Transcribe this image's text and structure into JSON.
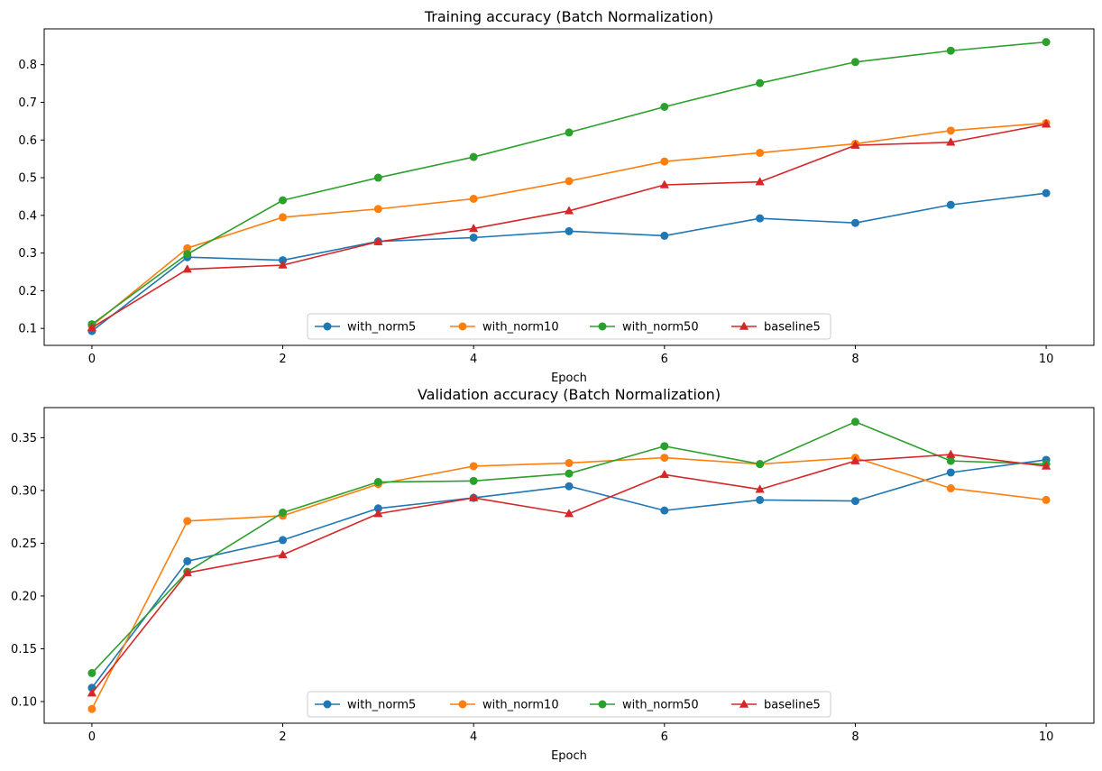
{
  "colors": {
    "with_norm5": "#1f77b4",
    "with_norm10": "#ff7f0e",
    "with_norm50": "#2ca02c",
    "baseline5": "#d62728"
  },
  "chart_data": [
    {
      "type": "line",
      "title": "Training accuracy (Batch Normalization)",
      "xlabel": "Epoch",
      "ylabel": "",
      "xlim": [
        -0.5,
        10.5
      ],
      "ylim": [
        0.055,
        0.895
      ],
      "xticks": [
        0,
        2,
        4,
        6,
        8,
        10
      ],
      "yticks": [
        0.1,
        0.2,
        0.3,
        0.4,
        0.5,
        0.6,
        0.7,
        0.8
      ],
      "ytick_labels": [
        "0.1",
        "0.2",
        "0.3",
        "0.4",
        "0.5",
        "0.6",
        "0.7",
        "0.8"
      ],
      "legend": "lower center, 4 columns",
      "grid": false,
      "x": [
        0,
        1,
        2,
        3,
        4,
        5,
        6,
        7,
        8,
        9,
        10
      ],
      "series": [
        {
          "name": "with_norm5",
          "marker": "circle",
          "values": [
            0.093,
            0.289,
            0.281,
            0.331,
            0.341,
            0.358,
            0.346,
            0.392,
            0.38,
            0.428,
            0.459
          ]
        },
        {
          "name": "with_norm10",
          "marker": "circle",
          "values": [
            0.107,
            0.313,
            0.395,
            0.417,
            0.444,
            0.491,
            0.543,
            0.566,
            0.59,
            0.625,
            0.645
          ]
        },
        {
          "name": "with_norm50",
          "marker": "circle",
          "values": [
            0.111,
            0.297,
            0.44,
            0.5,
            0.555,
            0.62,
            0.688,
            0.751,
            0.807,
            0.837,
            0.86
          ]
        },
        {
          "name": "baseline5",
          "marker": "triangle",
          "values": [
            0.102,
            0.257,
            0.268,
            0.33,
            0.365,
            0.412,
            0.481,
            0.489,
            0.586,
            0.594,
            0.642
          ]
        }
      ]
    },
    {
      "type": "line",
      "title": "Validation accuracy (Batch Normalization)",
      "xlabel": "Epoch",
      "ylabel": "",
      "xlim": [
        -0.5,
        10.5
      ],
      "ylim": [
        0.0795,
        0.3785
      ],
      "xticks": [
        0,
        2,
        4,
        6,
        8,
        10
      ],
      "yticks": [
        0.1,
        0.15,
        0.2,
        0.25,
        0.3,
        0.35
      ],
      "ytick_labels": [
        "0.10",
        "0.15",
        "0.20",
        "0.25",
        "0.30",
        "0.35"
      ],
      "legend": "lower center, 4 columns",
      "grid": false,
      "x": [
        0,
        1,
        2,
        3,
        4,
        5,
        6,
        7,
        8,
        9,
        10
      ],
      "series": [
        {
          "name": "with_norm5",
          "marker": "circle",
          "values": [
            0.113,
            0.233,
            0.253,
            0.283,
            0.293,
            0.304,
            0.281,
            0.291,
            0.29,
            0.317,
            0.329
          ]
        },
        {
          "name": "with_norm10",
          "marker": "circle",
          "values": [
            0.093,
            0.271,
            0.276,
            0.306,
            0.323,
            0.326,
            0.331,
            0.325,
            0.331,
            0.302,
            0.291
          ]
        },
        {
          "name": "with_norm50",
          "marker": "circle",
          "values": [
            0.127,
            0.223,
            0.279,
            0.308,
            0.309,
            0.316,
            0.342,
            0.325,
            0.365,
            0.328,
            0.325
          ]
        },
        {
          "name": "baseline5",
          "marker": "triangle",
          "values": [
            0.108,
            0.222,
            0.239,
            0.278,
            0.293,
            0.278,
            0.315,
            0.301,
            0.328,
            0.334,
            0.323
          ]
        }
      ]
    }
  ]
}
